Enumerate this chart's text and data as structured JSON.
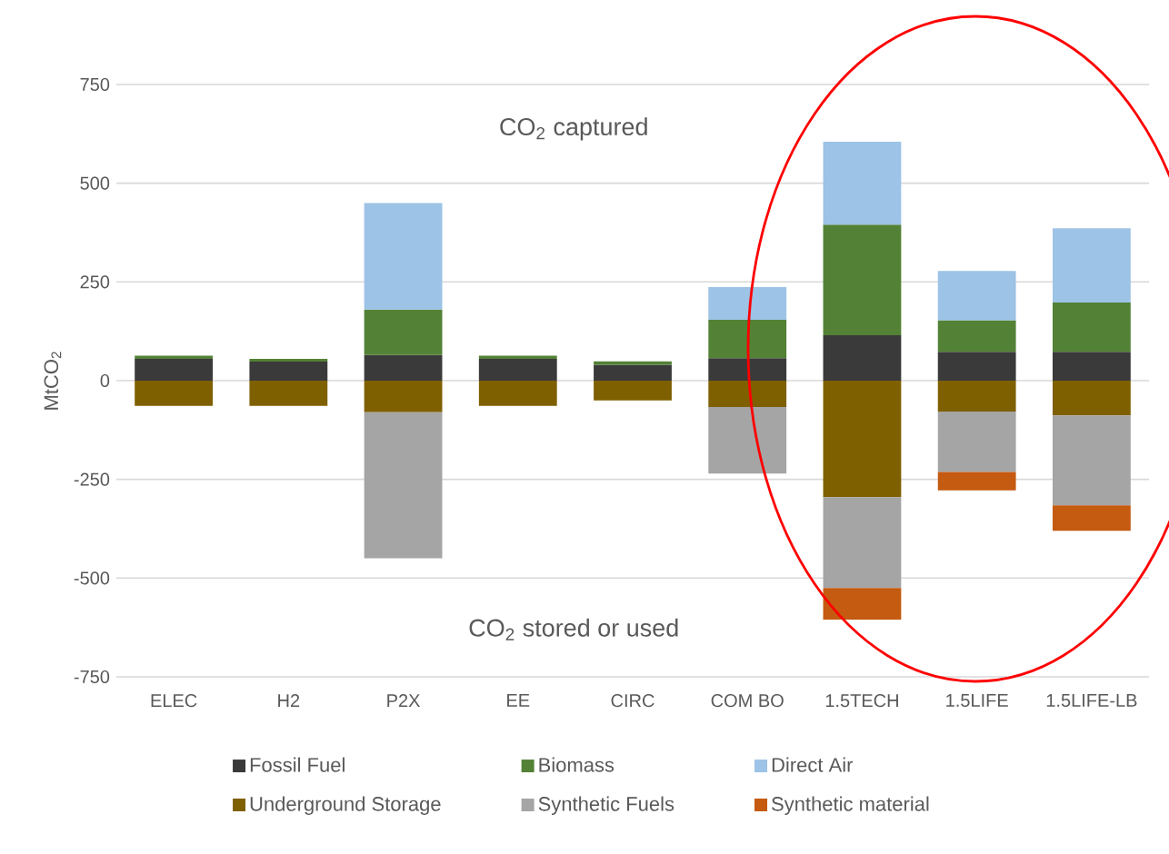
{
  "chart_data": {
    "type": "bar",
    "stacked": true,
    "ylabel": "MtCO$_{2}$",
    "categories": [
      "ELEC",
      "H2",
      "P2X",
      "EE",
      "CIRC",
      "COM BO",
      "1.5TECH",
      "1.5LIFE",
      "1.5LIFE-LB"
    ],
    "series": [
      {
        "name": "Fossil Fuel",
        "color": "#3a3a3a",
        "values": [
          55,
          48,
          65,
          55,
          40,
          57,
          115,
          73,
          73
        ]
      },
      {
        "name": "Biomass",
        "color": "#538135",
        "values": [
          8,
          7,
          115,
          8,
          9,
          97,
          280,
          80,
          125
        ]
      },
      {
        "name": "Direct Air",
        "color": "#9dc3e6",
        "values": [
          null,
          null,
          270,
          null,
          null,
          83,
          210,
          125,
          188
        ]
      },
      {
        "name": "Underground Storage",
        "color": "#7f6000",
        "values": [
          -64,
          -64,
          -80,
          -64,
          -50,
          -67,
          -295,
          -78,
          -88
        ]
      },
      {
        "name": "Synthetic Fuels",
        "color": "#a5a5a5",
        "values": [
          null,
          null,
          -370,
          null,
          null,
          -168,
          -230,
          -153,
          -228
        ]
      },
      {
        "name": "Synthetic material",
        "color": "#c55a11",
        "values": [
          null,
          null,
          null,
          null,
          null,
          null,
          -80,
          -47,
          -64
        ]
      }
    ],
    "ylim": [
      -750,
      750
    ],
    "yticks": [
      -750,
      -500,
      -250,
      0,
      250,
      500,
      750
    ],
    "grid": "y",
    "legend": "bottom",
    "annotations": [
      "CO$_{2}$ captured",
      "CO$_{2}$ stored or used"
    ]
  }
}
